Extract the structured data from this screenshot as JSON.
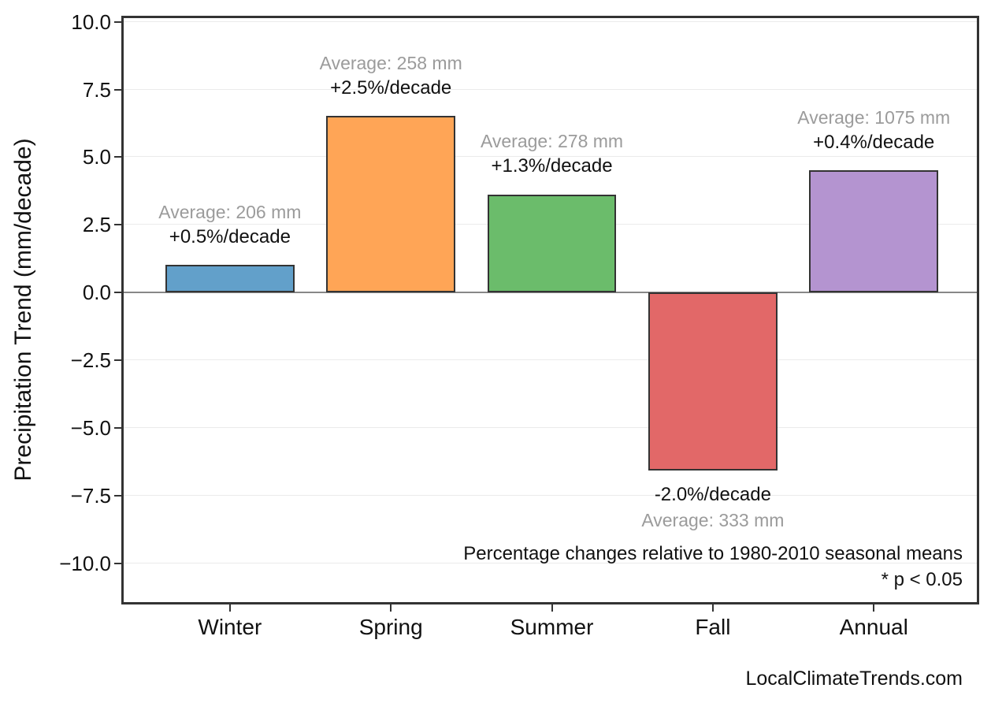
{
  "page": {
    "watermark": "LocalClimateTrends.com"
  },
  "chart_data": {
    "type": "bar",
    "title": "",
    "xlabel": "",
    "ylabel": "Precipitation Trend (mm/decade)",
    "categories": [
      "Winter",
      "Spring",
      "Summer",
      "Fall",
      "Annual"
    ],
    "values": [
      1.0,
      6.5,
      3.6,
      -6.6,
      4.5
    ],
    "bar_labels": [
      {
        "trend": "+0.5%/decade",
        "average": "Average: 206 mm"
      },
      {
        "trend": "+2.5%/decade",
        "average": "Average: 258 mm"
      },
      {
        "trend": "+1.3%/decade",
        "average": "Average: 278 mm"
      },
      {
        "trend": "-2.0%/decade",
        "average": "Average: 333 mm"
      },
      {
        "trend": "+0.4%/decade",
        "average": "Average: 1075 mm"
      }
    ],
    "bar_colors": [
      "#62A0CA",
      "#FFA556",
      "#6BBC6B",
      "#E26868",
      "#B494D0"
    ],
    "bar_edge_color": "#333333",
    "yticks": [
      10.0,
      7.5,
      5.0,
      2.5,
      0.0,
      -2.5,
      -5.0,
      -7.5,
      -10.0
    ],
    "ytick_labels": [
      "10.0",
      "7.5",
      "5.0",
      "2.5",
      "0.0",
      "−2.5",
      "−5.0",
      "−7.5",
      "−10.0"
    ],
    "ylim": [
      -11.45,
      10.12
    ],
    "xlim": [
      -0.66,
      4.64
    ],
    "bar_width": 0.8,
    "grid": true,
    "zero_line": true,
    "legend": "none",
    "annotations": [
      "Percentage changes relative to 1980-2010 seasonal means",
      "* p < 0.05"
    ],
    "colors": {
      "grid": "#ebebeb",
      "zero_line": "#888888",
      "axis": "#333333",
      "trend_text": "#111111",
      "average_text": "#9b9b9b"
    }
  }
}
